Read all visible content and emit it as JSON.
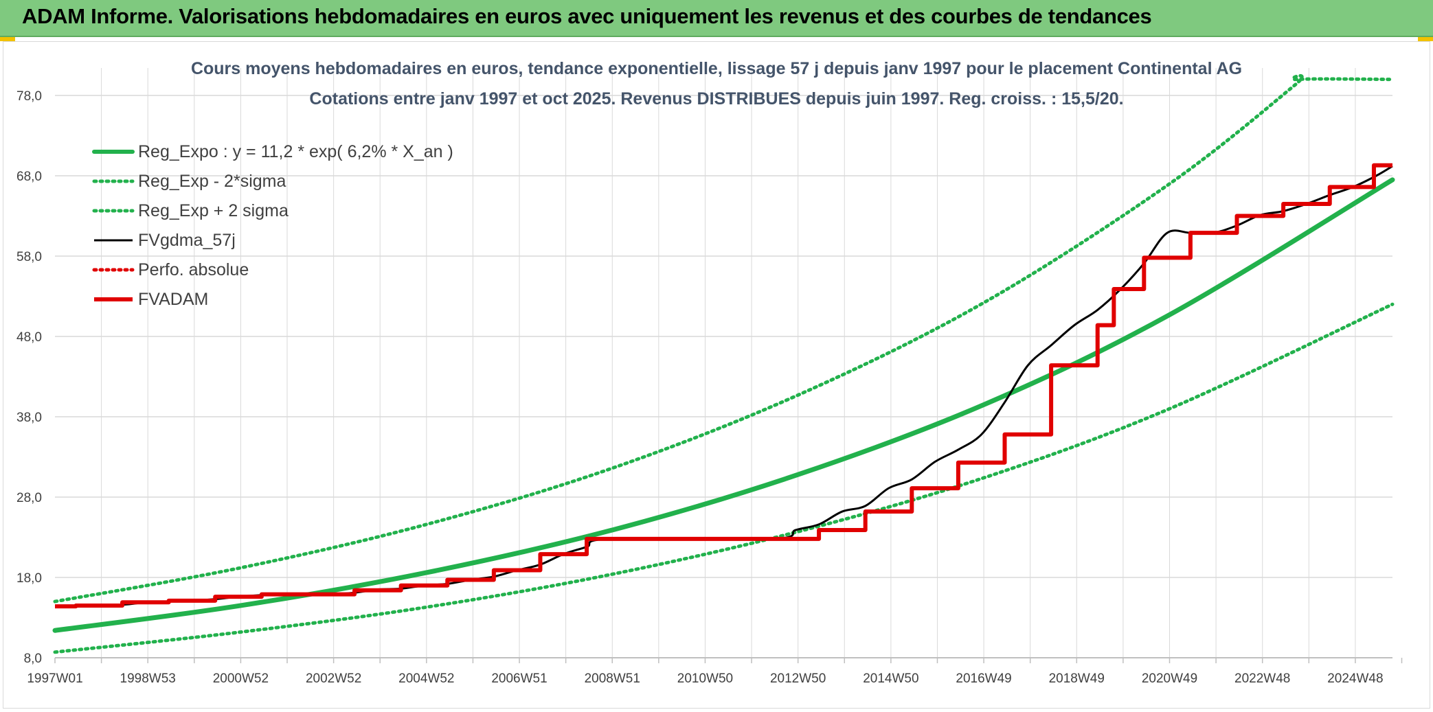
{
  "banner": {
    "title": "ADAM Informe. Valorisations hebdomadaires en euros avec uniquement les revenus et des courbes de tendances",
    "background": "#7fc97f"
  },
  "chart_data": {
    "type": "line",
    "title": "Cours moyens hebdomadaires en euros, tendance exponentielle, lissage 57 j depuis janv 1997 pour le placement Continental AG",
    "subtitle": "Cotations entre janv 1997 et oct 2025. Revenus DISTRIBUES depuis juin 1997. Reg. croiss. : 15,5/20.",
    "xlabel": "",
    "ylabel": "",
    "x_tick_labels": [
      "1997W01",
      "1998W53",
      "2000W52",
      "2002W52",
      "2004W52",
      "2006W51",
      "2008W51",
      "2010W50",
      "2012W50",
      "2014W50",
      "2016W49",
      "2018W49",
      "2020W49",
      "2022W48",
      "2024W48"
    ],
    "x_range_years": [
      1997.0,
      2025.8
    ],
    "y_ticks": [
      "8,0",
      "18,0",
      "28,0",
      "38,0",
      "48,0",
      "58,0",
      "68,0",
      "78,0"
    ],
    "ylim": [
      8,
      78
    ],
    "grid": true,
    "legend_position": "top-left",
    "series": [
      {
        "name": "Reg_Expo : y = 11,2 * exp( 6,2% *  X_an )",
        "color": "#22b14c",
        "style": "solid",
        "x": [
          1997.0,
          2001.0,
          2005.0,
          2009.0,
          2013.0,
          2017.0,
          2021.0,
          2025.8
        ],
        "values": [
          11.4,
          14.5,
          18.6,
          23.9,
          30.8,
          39.5,
          50.7,
          67.5
        ]
      },
      {
        "name": "Reg_Exp - 2*sigma",
        "color": "#22b14c",
        "style": "dotted",
        "x": [
          1997.0,
          2001.0,
          2005.0,
          2009.0,
          2013.0,
          2017.0,
          2021.0,
          2025.8
        ],
        "values": [
          8.7,
          11.2,
          14.3,
          18.4,
          23.7,
          30.4,
          39.0,
          52.0
        ]
      },
      {
        "name": "Reg_Exp + 2 sigma",
        "color": "#22b14c",
        "style": "dotted",
        "x": [
          1997.0,
          2001.0,
          2005.0,
          2009.0,
          2013.0,
          2017.0,
          2021.0,
          2023.7,
          2023.75,
          2025.8
        ],
        "values": [
          15.0,
          19.2,
          24.6,
          31.6,
          40.7,
          52.2,
          67.0,
          79.3,
          80.0,
          80.0
        ]
      },
      {
        "name": "FVgdma_57j",
        "color": "#000000",
        "style": "solid",
        "x": [
          1997.0,
          1997.4,
          1998.45,
          1998.95,
          1999.45,
          1999.95,
          2000.45,
          2000.95,
          2001.45,
          2001.95,
          2002.45,
          2002.95,
          2003.45,
          2003.95,
          2004.45,
          2004.95,
          2005.45,
          2005.95,
          2006.45,
          2006.95,
          2007.45,
          2007.95,
          2008.45,
          2008.95,
          2012.45,
          2012.95,
          2013.45,
          2013.95,
          2014.45,
          2014.95,
          2015.45,
          2015.95,
          2016.45,
          2016.95,
          2017.45,
          2017.95,
          2018.45,
          2018.95,
          2019.45,
          2019.95,
          2020.45,
          2020.95,
          2021.45,
          2021.95,
          2022.45,
          2022.95,
          2023.45,
          2023.95,
          2024.45,
          2024.95,
          2025.45,
          2025.8
        ],
        "values": [
          14.4,
          14.4,
          14.6,
          14.9,
          15.0,
          15.1,
          15.3,
          15.6,
          15.8,
          15.9,
          15.9,
          15.9,
          16.1,
          16.5,
          16.6,
          17.0,
          17.2,
          17.7,
          18.1,
          18.9,
          19.6,
          20.9,
          21.8,
          22.8,
          22.8,
          23.9,
          24.6,
          26.2,
          26.9,
          29.1,
          30.2,
          32.4,
          33.9,
          35.8,
          39.8,
          44.4,
          46.9,
          49.4,
          51.3,
          53.9,
          57.1,
          60.9,
          60.9,
          60.9,
          61.8,
          63.1,
          63.6,
          64.5,
          65.6,
          66.6,
          68.0,
          69.2
        ]
      },
      {
        "name": "Perfo. absolue",
        "color": "#e00000",
        "style": "dotted",
        "x": [],
        "values": []
      },
      {
        "name": "FVADAM",
        "color": "#e00000",
        "style": "step",
        "x": [
          1997.0,
          1997.45,
          1998.45,
          1999.45,
          2000.45,
          2001.45,
          2002.45,
          2003.45,
          2004.45,
          2005.45,
          2006.45,
          2007.45,
          2008.45,
          2012.45,
          2013.45,
          2014.45,
          2015.45,
          2016.45,
          2017.45,
          2018.45,
          2019.45,
          2019.8,
          2020.45,
          2021.45,
          2022.45,
          2023.45,
          2024.45,
          2025.4,
          2025.8
        ],
        "values": [
          14.4,
          14.5,
          14.9,
          15.1,
          15.6,
          15.9,
          15.9,
          16.4,
          17.0,
          17.7,
          18.9,
          20.9,
          22.8,
          22.8,
          23.9,
          26.2,
          29.1,
          32.3,
          35.8,
          44.4,
          49.4,
          53.9,
          57.8,
          60.9,
          63.0,
          64.5,
          66.6,
          69.3,
          69.3
        ]
      }
    ]
  }
}
